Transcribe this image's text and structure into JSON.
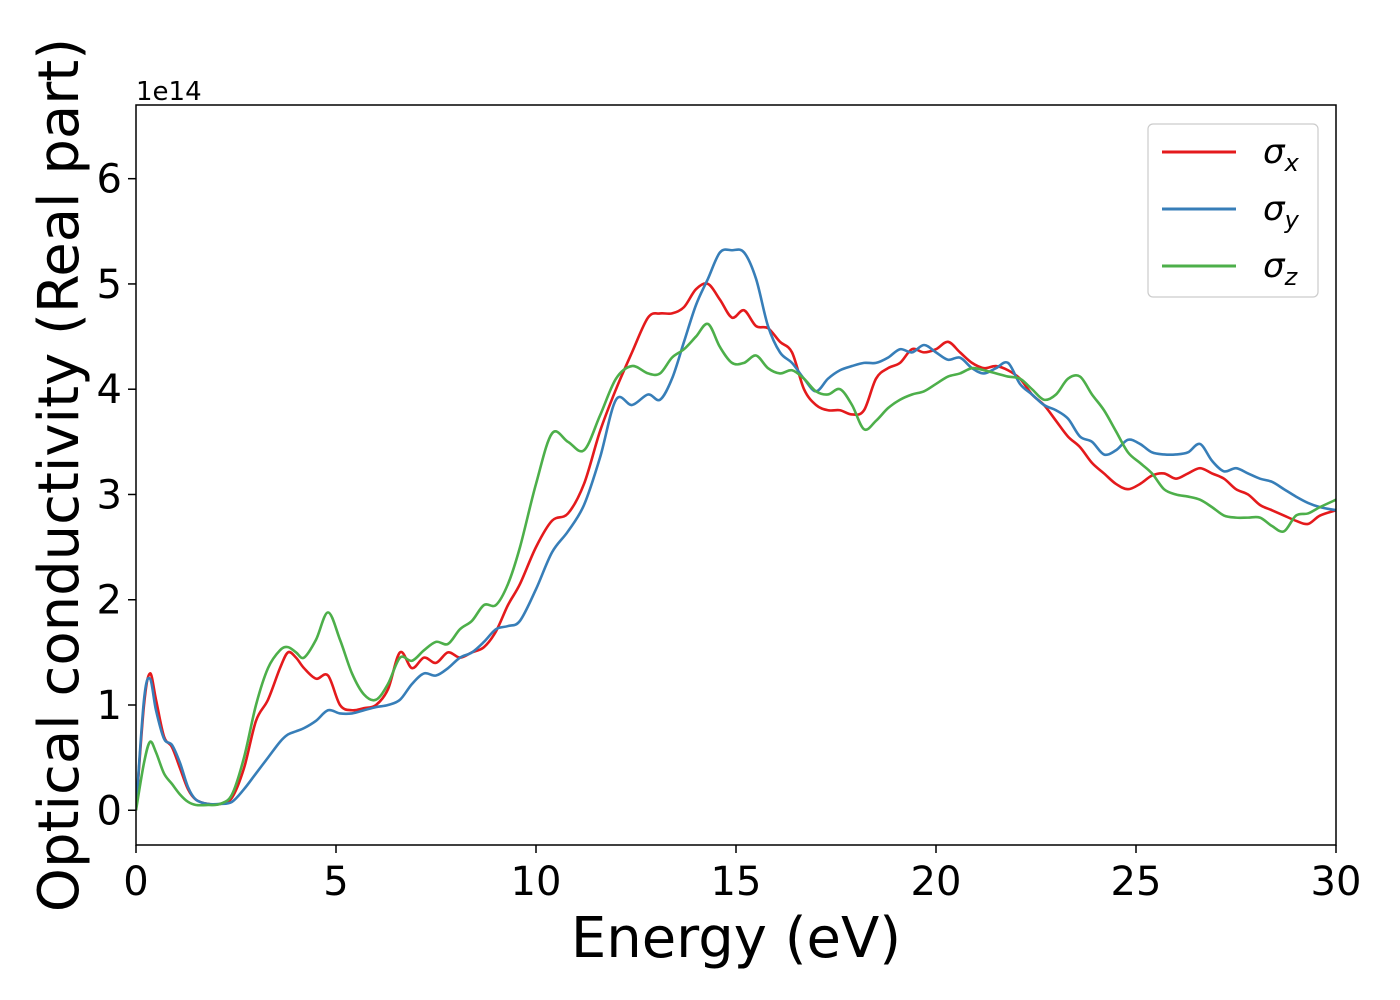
{
  "chart_data": {
    "type": "line",
    "xlabel": "Energy (eV)",
    "ylabel": "Optical conductivity (Real part)",
    "y_offset_label": "1e14",
    "xlim": [
      0,
      30
    ],
    "ylim": [
      -0.33,
      6.7
    ],
    "x_ticks": [
      0,
      5,
      10,
      15,
      20,
      25,
      30
    ],
    "y_ticks": [
      0,
      1,
      2,
      3,
      4,
      5,
      6
    ],
    "grid": false,
    "legend_position": "top-right",
    "legend": [
      {
        "symbol": "σ",
        "sub": "x",
        "color": "#e41a1c"
      },
      {
        "symbol": "σ",
        "sub": "y",
        "color": "#377eb8"
      },
      {
        "symbol": "σ",
        "sub": "z",
        "color": "#4daf4a"
      }
    ],
    "series": [
      {
        "name": "σx",
        "color": "#e41a1c",
        "x": [
          0,
          0.2,
          0.35,
          0.5,
          0.7,
          0.9,
          1.1,
          1.3,
          1.5,
          1.8,
          2.1,
          2.4,
          2.7,
          3.0,
          3.3,
          3.6,
          3.8,
          4.0,
          4.2,
          4.5,
          4.8,
          5.1,
          5.4,
          5.7,
          6.0,
          6.3,
          6.6,
          6.9,
          7.2,
          7.5,
          7.8,
          8.1,
          8.4,
          8.7,
          9.0,
          9.3,
          9.6,
          10.0,
          10.4,
          10.8,
          11.2,
          11.6,
          12.0,
          12.4,
          12.8,
          13.1,
          13.4,
          13.7,
          14.0,
          14.3,
          14.6,
          14.9,
          15.2,
          15.5,
          15.8,
          16.1,
          16.4,
          16.7,
          17.0,
          17.3,
          17.6,
          17.9,
          18.2,
          18.5,
          18.8,
          19.1,
          19.4,
          19.7,
          20.0,
          20.3,
          20.6,
          20.9,
          21.2,
          21.5,
          21.8,
          22.1,
          22.4,
          22.7,
          23.0,
          23.3,
          23.6,
          23.9,
          24.2,
          24.5,
          24.8,
          25.1,
          25.4,
          25.7,
          26.0,
          26.3,
          26.6,
          26.9,
          27.2,
          27.5,
          27.8,
          28.1,
          28.4,
          28.7,
          29.0,
          29.3,
          29.6,
          30.0
        ],
        "values": [
          0,
          1.0,
          1.3,
          1.05,
          0.7,
          0.6,
          0.4,
          0.2,
          0.1,
          0.06,
          0.06,
          0.12,
          0.4,
          0.85,
          1.05,
          1.35,
          1.5,
          1.45,
          1.35,
          1.25,
          1.28,
          1.0,
          0.95,
          0.97,
          1.0,
          1.15,
          1.5,
          1.35,
          1.45,
          1.4,
          1.5,
          1.45,
          1.5,
          1.55,
          1.7,
          1.95,
          2.15,
          2.5,
          2.75,
          2.82,
          3.1,
          3.6,
          4.0,
          4.35,
          4.68,
          4.72,
          4.72,
          4.78,
          4.95,
          5.0,
          4.85,
          4.68,
          4.75,
          4.6,
          4.58,
          4.45,
          4.35,
          4.0,
          3.85,
          3.8,
          3.8,
          3.76,
          3.8,
          4.1,
          4.2,
          4.25,
          4.38,
          4.35,
          4.38,
          4.45,
          4.35,
          4.25,
          4.2,
          4.22,
          4.18,
          4.1,
          3.95,
          3.85,
          3.7,
          3.55,
          3.45,
          3.3,
          3.2,
          3.1,
          3.05,
          3.1,
          3.18,
          3.2,
          3.15,
          3.2,
          3.25,
          3.2,
          3.15,
          3.05,
          3.0,
          2.9,
          2.85,
          2.8,
          2.75,
          2.72,
          2.8,
          2.85
        ]
      },
      {
        "name": "σy",
        "color": "#377eb8",
        "x": [
          0,
          0.2,
          0.35,
          0.5,
          0.7,
          0.9,
          1.1,
          1.3,
          1.5,
          1.8,
          2.1,
          2.4,
          2.7,
          3.0,
          3.3,
          3.6,
          3.8,
          4.0,
          4.2,
          4.5,
          4.8,
          5.1,
          5.4,
          5.7,
          6.0,
          6.3,
          6.6,
          6.9,
          7.2,
          7.5,
          7.8,
          8.1,
          8.4,
          8.7,
          9.0,
          9.3,
          9.6,
          10.0,
          10.4,
          10.8,
          11.2,
          11.6,
          12.0,
          12.4,
          12.8,
          13.1,
          13.4,
          13.7,
          14.0,
          14.3,
          14.6,
          14.9,
          15.2,
          15.5,
          15.8,
          16.1,
          16.4,
          16.7,
          17.0,
          17.3,
          17.6,
          17.9,
          18.2,
          18.5,
          18.8,
          19.1,
          19.4,
          19.7,
          20.0,
          20.3,
          20.6,
          20.9,
          21.2,
          21.5,
          21.8,
          22.1,
          22.4,
          22.7,
          23.0,
          23.3,
          23.6,
          23.9,
          24.2,
          24.5,
          24.8,
          25.1,
          25.4,
          25.7,
          26.0,
          26.3,
          26.6,
          26.9,
          27.2,
          27.5,
          27.8,
          28.1,
          28.4,
          28.7,
          29.0,
          29.3,
          29.6,
          30.0
        ],
        "values": [
          0,
          1.05,
          1.25,
          0.95,
          0.68,
          0.62,
          0.45,
          0.22,
          0.1,
          0.06,
          0.06,
          0.08,
          0.2,
          0.35,
          0.5,
          0.65,
          0.72,
          0.75,
          0.78,
          0.85,
          0.95,
          0.92,
          0.92,
          0.95,
          0.98,
          1.0,
          1.05,
          1.2,
          1.3,
          1.28,
          1.35,
          1.45,
          1.5,
          1.6,
          1.72,
          1.75,
          1.8,
          2.1,
          2.45,
          2.65,
          2.9,
          3.35,
          3.9,
          3.85,
          3.95,
          3.9,
          4.1,
          4.45,
          4.8,
          5.05,
          5.3,
          5.32,
          5.3,
          5.05,
          4.6,
          4.35,
          4.25,
          4.1,
          3.98,
          4.1,
          4.18,
          4.22,
          4.25,
          4.25,
          4.3,
          4.38,
          4.35,
          4.42,
          4.35,
          4.28,
          4.3,
          4.2,
          4.15,
          4.2,
          4.25,
          4.05,
          3.95,
          3.85,
          3.8,
          3.72,
          3.55,
          3.5,
          3.38,
          3.42,
          3.52,
          3.48,
          3.4,
          3.38,
          3.38,
          3.4,
          3.48,
          3.32,
          3.22,
          3.25,
          3.2,
          3.15,
          3.12,
          3.05,
          2.98,
          2.92,
          2.88,
          2.85
        ]
      },
      {
        "name": "σz",
        "color": "#4daf4a",
        "x": [
          0,
          0.2,
          0.35,
          0.5,
          0.7,
          0.9,
          1.1,
          1.3,
          1.5,
          1.8,
          2.1,
          2.4,
          2.7,
          3.0,
          3.3,
          3.6,
          3.8,
          4.0,
          4.2,
          4.5,
          4.8,
          5.1,
          5.4,
          5.7,
          6.0,
          6.3,
          6.6,
          6.9,
          7.2,
          7.5,
          7.8,
          8.1,
          8.4,
          8.7,
          9.0,
          9.3,
          9.6,
          10.0,
          10.4,
          10.8,
          11.2,
          11.6,
          12.0,
          12.4,
          12.8,
          13.1,
          13.4,
          13.7,
          14.0,
          14.3,
          14.6,
          14.9,
          15.2,
          15.5,
          15.8,
          16.1,
          16.4,
          16.7,
          17.0,
          17.3,
          17.6,
          17.9,
          18.2,
          18.5,
          18.8,
          19.1,
          19.4,
          19.7,
          20.0,
          20.3,
          20.6,
          20.9,
          21.2,
          21.5,
          21.8,
          22.1,
          22.4,
          22.7,
          23.0,
          23.3,
          23.6,
          23.9,
          24.2,
          24.5,
          24.8,
          25.1,
          25.4,
          25.7,
          26.0,
          26.3,
          26.6,
          26.9,
          27.2,
          27.5,
          27.8,
          28.1,
          28.4,
          28.7,
          29.0,
          29.3,
          29.6,
          30.0
        ],
        "values": [
          0,
          0.45,
          0.65,
          0.55,
          0.35,
          0.25,
          0.15,
          0.08,
          0.05,
          0.05,
          0.06,
          0.15,
          0.5,
          1.0,
          1.35,
          1.52,
          1.55,
          1.5,
          1.45,
          1.62,
          1.88,
          1.62,
          1.3,
          1.1,
          1.05,
          1.2,
          1.45,
          1.42,
          1.52,
          1.6,
          1.58,
          1.72,
          1.8,
          1.95,
          1.95,
          2.15,
          2.5,
          3.1,
          3.58,
          3.5,
          3.42,
          3.75,
          4.1,
          4.22,
          4.15,
          4.15,
          4.3,
          4.38,
          4.5,
          4.62,
          4.4,
          4.25,
          4.25,
          4.32,
          4.2,
          4.15,
          4.18,
          4.1,
          3.98,
          3.95,
          4.0,
          3.85,
          3.62,
          3.7,
          3.82,
          3.9,
          3.95,
          3.98,
          4.05,
          4.12,
          4.15,
          4.2,
          4.18,
          4.15,
          4.12,
          4.1,
          4.0,
          3.9,
          3.95,
          4.1,
          4.12,
          3.95,
          3.8,
          3.6,
          3.4,
          3.3,
          3.2,
          3.05,
          3.0,
          2.98,
          2.95,
          2.88,
          2.8,
          2.78,
          2.78,
          2.78,
          2.7,
          2.65,
          2.8,
          2.82,
          2.88,
          2.95
        ]
      }
    ]
  }
}
